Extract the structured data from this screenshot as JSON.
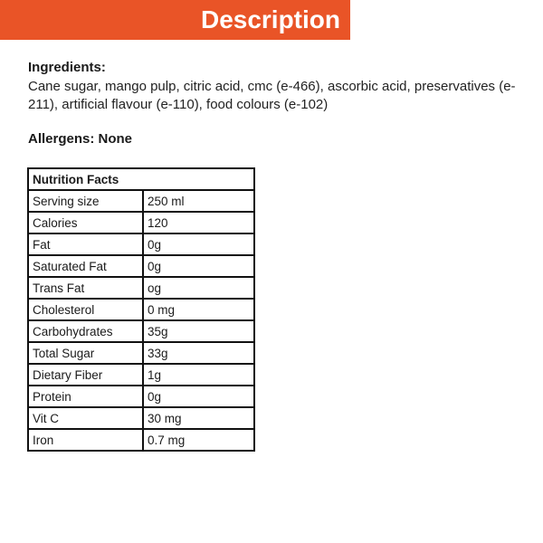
{
  "header": {
    "title": "Description",
    "color": "#e95427"
  },
  "ingredients": {
    "label": "Ingredients:",
    "text": "Cane sugar, mango pulp, citric acid, cmc (e-466), ascorbic acid, preservatives (e-211), artificial flavour (e-110), food colours (e-102)"
  },
  "allergens": "Allergens: None",
  "nutrition": {
    "title": "Nutrition Facts",
    "rows": [
      {
        "name": "Serving size",
        "value": "250 ml"
      },
      {
        "name": "Calories",
        "value": "120"
      },
      {
        "name": "Fat",
        "value": "0g"
      },
      {
        "name": "Saturated Fat",
        "value": "0g"
      },
      {
        "name": "Trans Fat",
        "value": "og"
      },
      {
        "name": "Cholesterol",
        "value": "0 mg"
      },
      {
        "name": "Carbohydrates",
        "value": "35g"
      },
      {
        "name": "Total Sugar",
        "value": "33g"
      },
      {
        "name": "Dietary Fiber",
        "value": "1g"
      },
      {
        "name": "Protein",
        "value": "0g"
      },
      {
        "name": "Vit C",
        "value": "30 mg"
      },
      {
        "name": "Iron",
        "value": "0.7 mg"
      }
    ]
  }
}
